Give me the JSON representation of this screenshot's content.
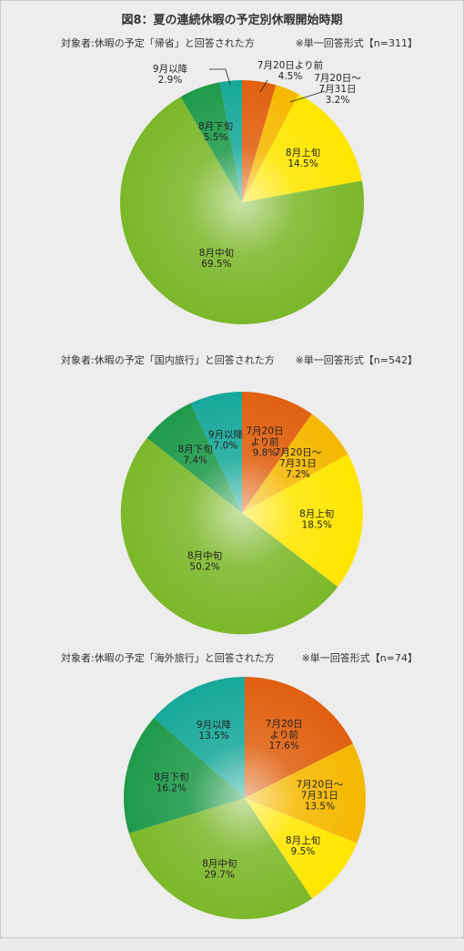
{
  "title": "図8：夏の連続休暇の予定別休暇開始時期",
  "colors": [
    "#e0600f",
    "#f5b800",
    "#ffe600",
    "#7cb82a",
    "#1f9a4a",
    "#17a89a"
  ],
  "chart_data": [
    {
      "type": "pie",
      "subtitle": "対象者:休暇の予定「帰省」と回答された方",
      "form": "※単一回答形式【n=311】",
      "categories": [
        "7月20日より前",
        "7月20日～7月31日",
        "8月上旬",
        "8月中旬",
        "8月下旬",
        "9月以降"
      ],
      "labels": [
        [
          "7月20日より前",
          "4.5%"
        ],
        [
          "7月20日～",
          "7月31日",
          "3.2%"
        ],
        [
          "8月上旬",
          "14.5%"
        ],
        [
          "8月中旬",
          "69.5%"
        ],
        [
          "8月下旬",
          "5.5%"
        ],
        [
          "9月以降",
          "2.9%"
        ]
      ],
      "values": [
        4.5,
        3.2,
        14.5,
        69.5,
        5.5,
        2.9
      ]
    },
    {
      "type": "pie",
      "subtitle": "対象者:休暇の予定「国内旅行」と回答された方",
      "form": "※単一回答形式【n=542】",
      "categories": [
        "7月20日より前",
        "7月20日～7月31日",
        "8月上旬",
        "8月中旬",
        "8月下旬",
        "9月以降"
      ],
      "labels": [
        [
          "7月20日",
          "より前",
          "9.8%"
        ],
        [
          "7月20日～",
          "7月31日",
          "7.2%"
        ],
        [
          "8月上旬",
          "18.5%"
        ],
        [
          "8月中旬",
          "50.2%"
        ],
        [
          "8月下旬",
          "7.4%"
        ],
        [
          "9月以降",
          "7.0%"
        ]
      ],
      "values": [
        9.8,
        7.2,
        18.5,
        50.2,
        7.4,
        7.0
      ]
    },
    {
      "type": "pie",
      "subtitle": "対象者:休暇の予定「海外旅行」と回答された方",
      "form": "※単一回答形式【n=74】",
      "categories": [
        "7月20日より前",
        "7月20日～7月31日",
        "8月上旬",
        "8月中旬",
        "8月下旬",
        "9月以降"
      ],
      "labels": [
        [
          "7月20日",
          "より前",
          "17.6%"
        ],
        [
          "7月20日～",
          "7月31日",
          "13.5%"
        ],
        [
          "8月上旬",
          "9.5%"
        ],
        [
          "8月中旬",
          "29.7%"
        ],
        [
          "8月下旬",
          "16.2%"
        ],
        [
          "9月以降",
          "13.5%"
        ]
      ],
      "values": [
        17.6,
        13.5,
        9.5,
        29.7,
        16.2,
        13.5
      ]
    }
  ]
}
